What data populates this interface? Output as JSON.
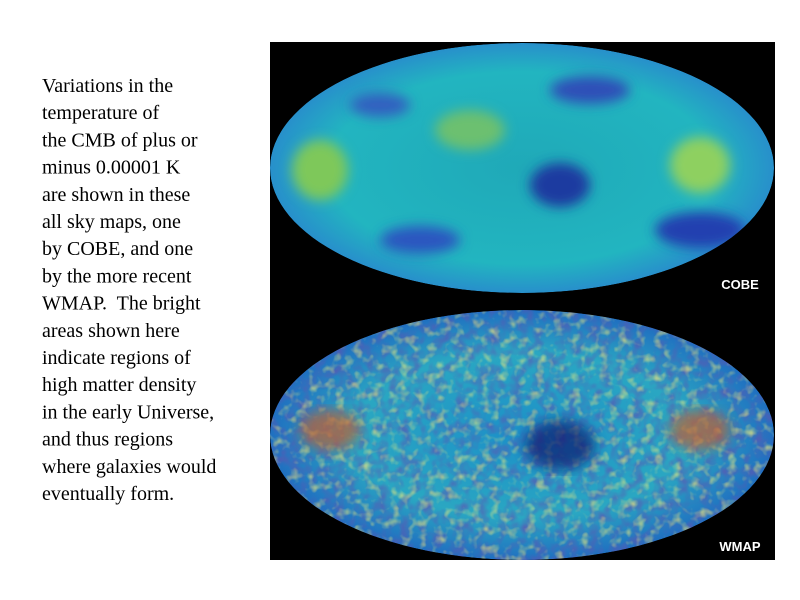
{
  "text": {
    "lines": [
      "Variations in the",
      "temperature of",
      "the CMB of plus or",
      "minus 0.00001 K",
      "are shown in these",
      "all sky maps, one",
      "by COBE, and one",
      "by the more recent",
      "WMAP.  The bright",
      "areas shown here",
      "indicate regions of",
      "high matter density",
      "in the early Universe,",
      "and thus regions",
      "where galaxies would",
      "eventually form."
    ]
  },
  "image": {
    "labels": [
      "COBE",
      "WMAP"
    ]
  }
}
